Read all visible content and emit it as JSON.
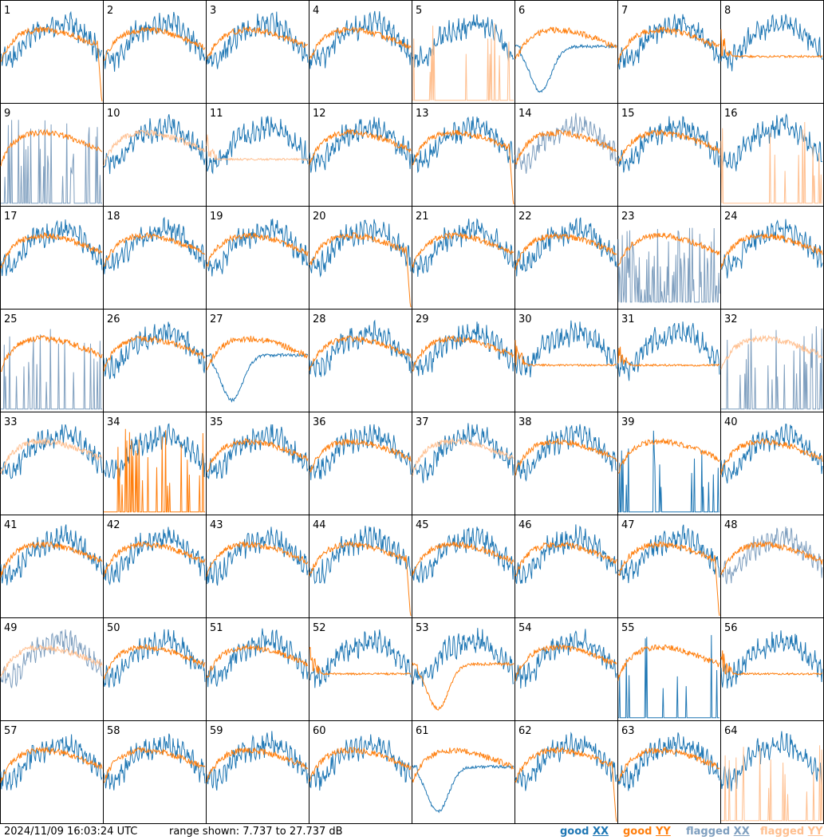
{
  "footer": {
    "timestamp": "2024/11/09 16:03:24 UTC",
    "range_text": "range shown: 7.737 to 27.737 dB"
  },
  "legend": [
    {
      "label_prefix": "good ",
      "label_suffix": "XX",
      "color": "#1f77b4"
    },
    {
      "label_prefix": "good ",
      "label_suffix": "YY",
      "color": "#ff7f0e"
    },
    {
      "label_prefix": "flagged ",
      "label_suffix": "XX",
      "color": "#7f9fbf"
    },
    {
      "label_prefix": "flagged ",
      "label_suffix": "YY",
      "color": "#ffbf8f"
    }
  ],
  "chart_data": {
    "type": "line",
    "ylim": [
      7.737,
      27.737
    ],
    "grid": "8x8 small multiples",
    "tiles": [
      {
        "id": "1",
        "xx": "good",
        "yy": "good",
        "yy_shape": "drop"
      },
      {
        "id": "2",
        "xx": "good",
        "yy": "good"
      },
      {
        "id": "3",
        "xx": "good",
        "yy": "good"
      },
      {
        "id": "4",
        "xx": "good",
        "yy": "good"
      },
      {
        "id": "5",
        "xx": "good",
        "yy": "flagged",
        "yy_shape": "spikes"
      },
      {
        "id": "6",
        "xx": "good",
        "yy": "good",
        "xx_shape": "dip"
      },
      {
        "id": "7",
        "xx": "good",
        "yy": "good"
      },
      {
        "id": "8",
        "xx": "good",
        "yy": "good",
        "yy_shape": "flat"
      },
      {
        "id": "9",
        "xx": "flagged",
        "yy": "good",
        "xx_shape": "spikes"
      },
      {
        "id": "10",
        "xx": "good",
        "yy": "flagged"
      },
      {
        "id": "11",
        "xx": "good",
        "yy": "flagged",
        "yy_shape": "flat"
      },
      {
        "id": "12",
        "xx": "good",
        "yy": "good"
      },
      {
        "id": "13",
        "xx": "good",
        "yy": "good",
        "yy_shape": "drop"
      },
      {
        "id": "14",
        "xx": "flagged",
        "yy": "good"
      },
      {
        "id": "15",
        "xx": "good",
        "yy": "good"
      },
      {
        "id": "16",
        "xx": "good",
        "yy": "flagged",
        "yy_shape": "spikes"
      },
      {
        "id": "17",
        "xx": "good",
        "yy": "good"
      },
      {
        "id": "18",
        "xx": "good",
        "yy": "good"
      },
      {
        "id": "19",
        "xx": "good",
        "yy": "good"
      },
      {
        "id": "20",
        "xx": "good",
        "yy": "good",
        "yy_shape": "drop"
      },
      {
        "id": "21",
        "xx": "good",
        "yy": "good"
      },
      {
        "id": "22",
        "xx": "good",
        "yy": "good"
      },
      {
        "id": "23",
        "xx": "flagged",
        "yy": "good",
        "xx_shape": "noise"
      },
      {
        "id": "24",
        "xx": "good",
        "yy": "good"
      },
      {
        "id": "25",
        "xx": "flagged",
        "yy": "good",
        "xx_shape": "spikes"
      },
      {
        "id": "26",
        "xx": "good",
        "yy": "good"
      },
      {
        "id": "27",
        "xx": "good",
        "yy": "good",
        "xx_shape": "dip"
      },
      {
        "id": "28",
        "xx": "good",
        "yy": "good"
      },
      {
        "id": "29",
        "xx": "good",
        "yy": "good"
      },
      {
        "id": "30",
        "xx": "good",
        "yy": "good",
        "yy_shape": "flat"
      },
      {
        "id": "31",
        "xx": "good",
        "yy": "good",
        "yy_shape": "flat"
      },
      {
        "id": "32",
        "xx": "flagged",
        "yy": "flagged",
        "xx_shape": "spikes"
      },
      {
        "id": "33",
        "xx": "good",
        "yy": "flagged"
      },
      {
        "id": "34",
        "xx": "good",
        "yy": "good",
        "yy_shape": "spikes"
      },
      {
        "id": "35",
        "xx": "good",
        "yy": "good"
      },
      {
        "id": "36",
        "xx": "good",
        "yy": "good"
      },
      {
        "id": "37",
        "xx": "good",
        "yy": "flagged"
      },
      {
        "id": "38",
        "xx": "good",
        "yy": "good"
      },
      {
        "id": "39",
        "xx": "good",
        "yy": "good",
        "xx_shape": "spikes"
      },
      {
        "id": "40",
        "xx": "good",
        "yy": "good"
      },
      {
        "id": "41",
        "xx": "good",
        "yy": "good"
      },
      {
        "id": "42",
        "xx": "good",
        "yy": "good"
      },
      {
        "id": "43",
        "xx": "good",
        "yy": "good"
      },
      {
        "id": "44",
        "xx": "good",
        "yy": "good",
        "yy_shape": "drop"
      },
      {
        "id": "45",
        "xx": "good",
        "yy": "good"
      },
      {
        "id": "46",
        "xx": "good",
        "yy": "good"
      },
      {
        "id": "47",
        "xx": "good",
        "yy": "good",
        "yy_shape": "drop"
      },
      {
        "id": "48",
        "xx": "flagged",
        "yy": "good"
      },
      {
        "id": "49",
        "xx": "flagged",
        "yy": "flagged"
      },
      {
        "id": "50",
        "xx": "good",
        "yy": "good"
      },
      {
        "id": "51",
        "xx": "good",
        "yy": "good"
      },
      {
        "id": "52",
        "xx": "good",
        "yy": "good",
        "yy_shape": "flat"
      },
      {
        "id": "53",
        "xx": "good",
        "yy": "good",
        "yy_shape": "dip"
      },
      {
        "id": "54",
        "xx": "good",
        "yy": "good"
      },
      {
        "id": "55",
        "xx": "good",
        "yy": "good",
        "xx_shape": "spikes"
      },
      {
        "id": "56",
        "xx": "good",
        "yy": "good",
        "yy_shape": "flat"
      },
      {
        "id": "57",
        "xx": "good",
        "yy": "good"
      },
      {
        "id": "58",
        "xx": "good",
        "yy": "good"
      },
      {
        "id": "59",
        "xx": "good",
        "yy": "good"
      },
      {
        "id": "60",
        "xx": "good",
        "yy": "good"
      },
      {
        "id": "61",
        "xx": "good",
        "yy": "good",
        "xx_shape": "dip"
      },
      {
        "id": "62",
        "xx": "good",
        "yy": "good",
        "yy_shape": "drop"
      },
      {
        "id": "63",
        "xx": "good",
        "yy": "good"
      },
      {
        "id": "64",
        "xx": "good",
        "yy": "flagged",
        "yy_shape": "spikes"
      }
    ]
  }
}
